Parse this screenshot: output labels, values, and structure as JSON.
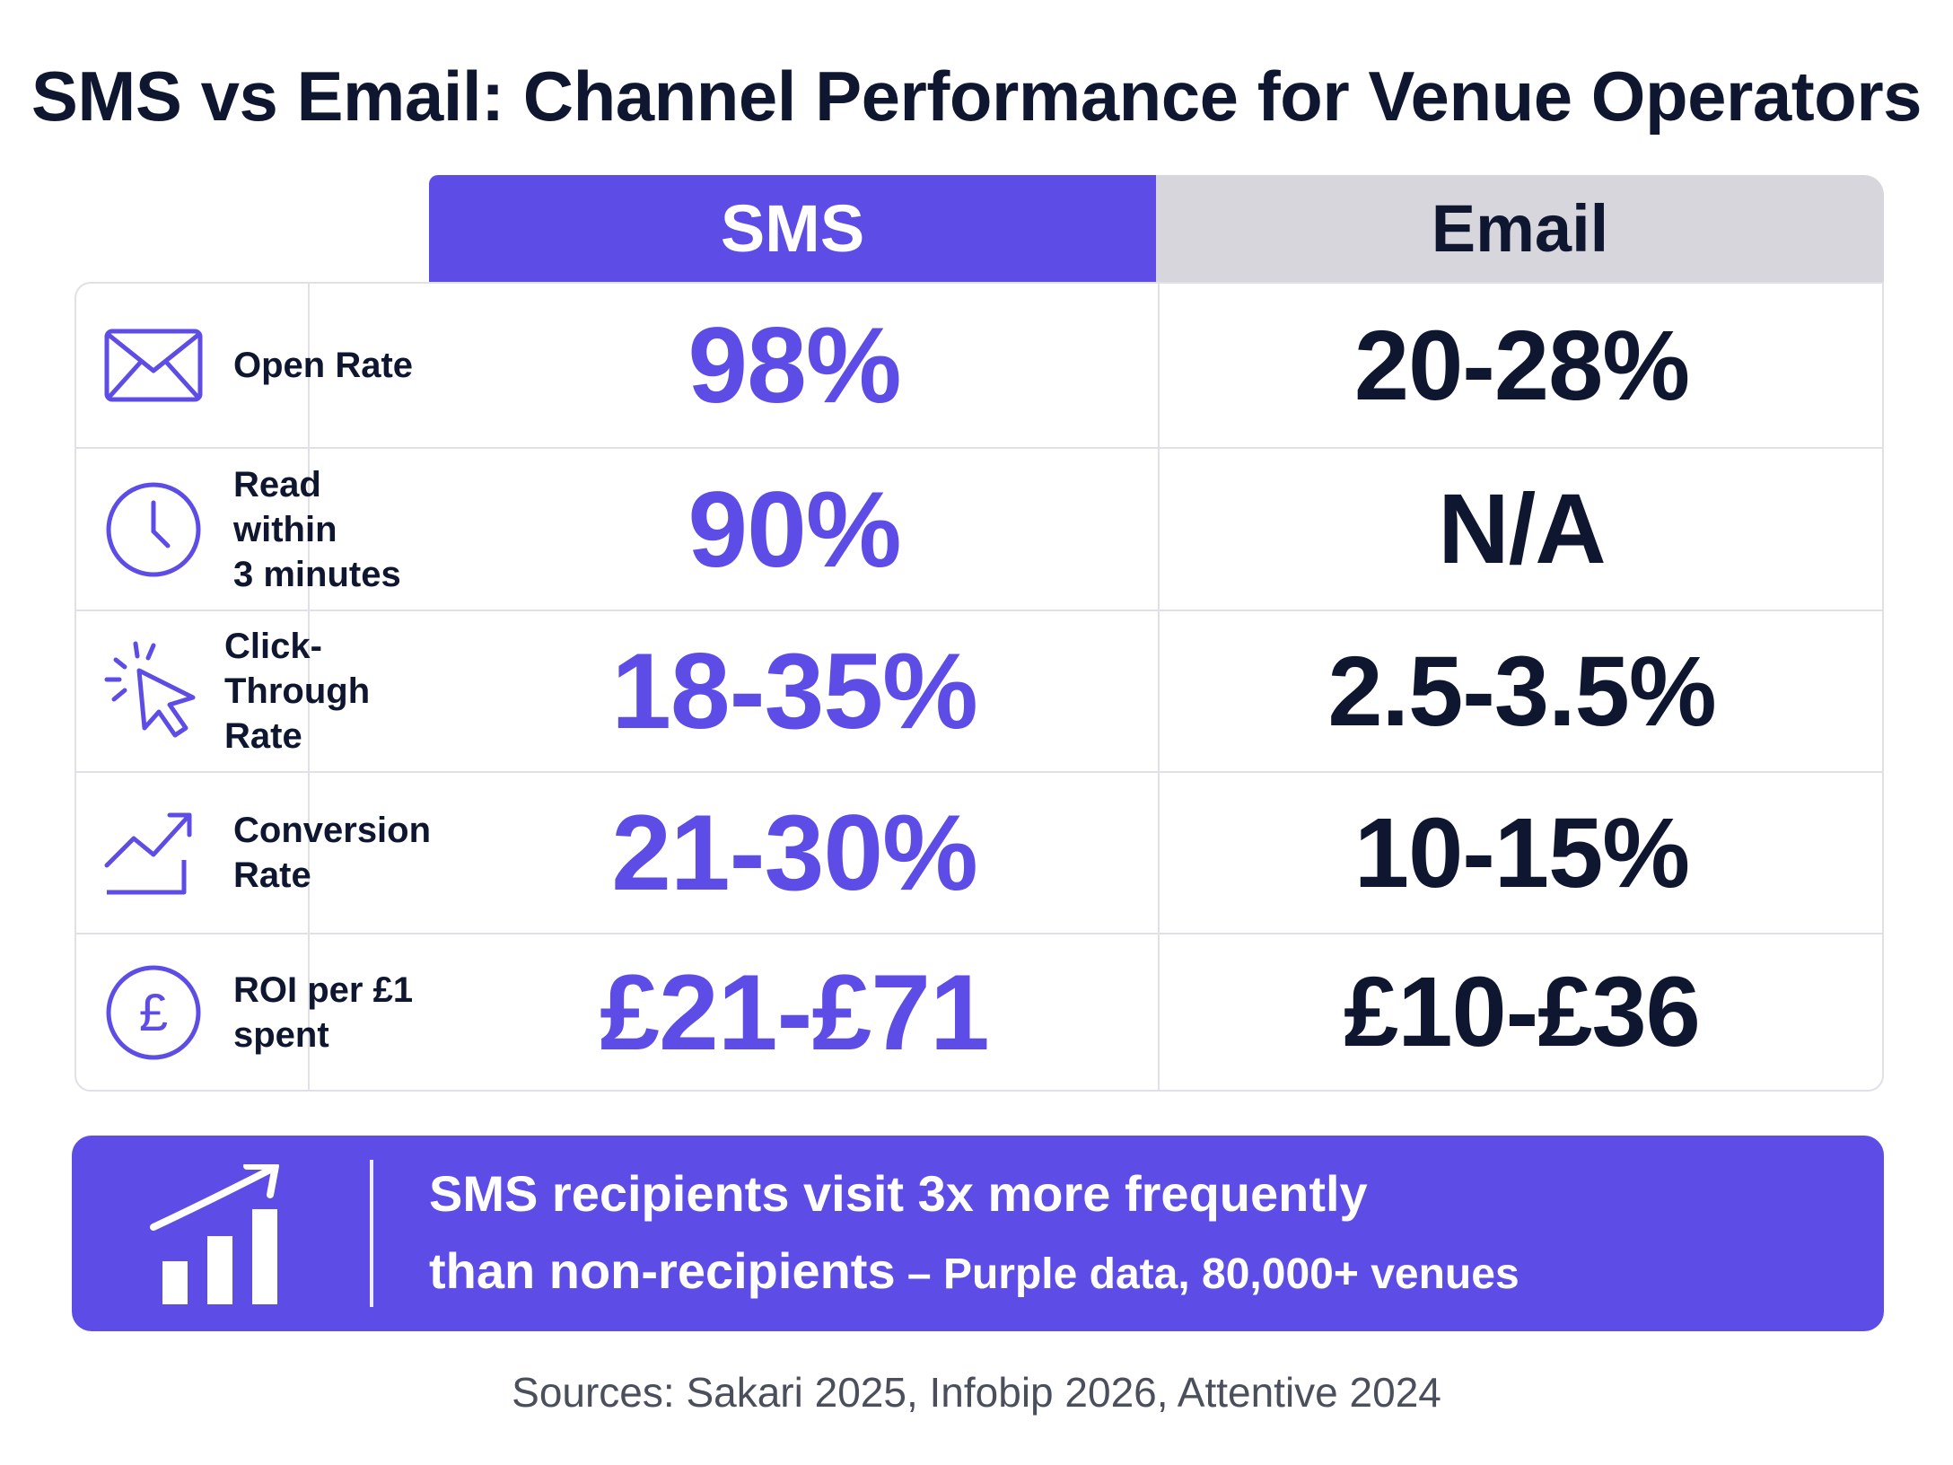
{
  "title": "SMS vs Email: Channel Performance for Venue Operators",
  "columns": {
    "sms": "SMS",
    "email": "Email"
  },
  "chart_data": {
    "type": "table",
    "title": "SMS vs Email: Channel Performance for Venue Operators",
    "columns": [
      "SMS",
      "Email"
    ],
    "rows": [
      {
        "icon": "envelope-icon",
        "label_lines": [
          "Open Rate"
        ],
        "sms": "98%",
        "email": "20-28%"
      },
      {
        "icon": "clock-icon",
        "label_lines": [
          "Read within",
          "3 minutes"
        ],
        "sms": "90%",
        "email": "N/A"
      },
      {
        "icon": "cursor-click-icon",
        "label_lines": [
          "Click-Through",
          "Rate"
        ],
        "sms": "18-35%",
        "email": "2.5-3.5%"
      },
      {
        "icon": "trend-up-icon",
        "label_lines": [
          "Conversion",
          "Rate"
        ],
        "sms": "21-30%",
        "email": "10-15%"
      },
      {
        "icon": "pound-coin-icon",
        "label_lines": [
          "ROI per £1",
          "spent"
        ],
        "sms": "£21-£71",
        "email": "£10-£36"
      }
    ]
  },
  "banner": {
    "icon": "growth-chart-icon",
    "line1": "SMS recipients visit 3x more frequently",
    "line2_main": "than non-recipients",
    "line2_source": " – Purple data, 80,000+ venues"
  },
  "sources": "Sources: Sakari 2025, Infobip 2026, Attentive 2024",
  "colors": {
    "accent": "#5d4de6",
    "text": "#0f1630",
    "email_header": "#d6d6dc",
    "border": "#e0e0e6"
  }
}
